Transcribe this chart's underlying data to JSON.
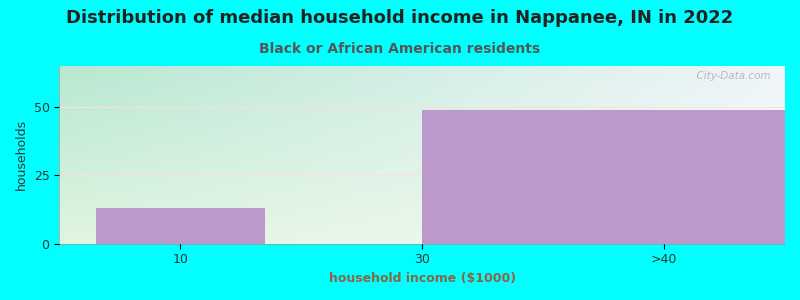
{
  "title": "Distribution of median household income in Nappanee, IN in 2022",
  "subtitle": "Black or African American residents",
  "xlabel": "household income ($1000)",
  "ylabel": "households",
  "categories": [
    "10",
    "30",
    ">40"
  ],
  "values": [
    13,
    0,
    49
  ],
  "bar_color": "#bb99cc",
  "background_color": "#00ffff",
  "plot_bg_top_left": "#cce8d8",
  "plot_bg_top_right": "#ddeeff",
  "plot_bg_bottom": "#e8f5e8",
  "ylim": [
    0,
    65
  ],
  "yticks": [
    0,
    25,
    50
  ],
  "title_fontsize": 13,
  "subtitle_fontsize": 10,
  "axis_label_fontsize": 9,
  "tick_fontsize": 9,
  "grid_color": "#ffdddd",
  "subtitle_color": "#555555",
  "xlabel_color": "#886644",
  "watermark": "  City-Data.com"
}
